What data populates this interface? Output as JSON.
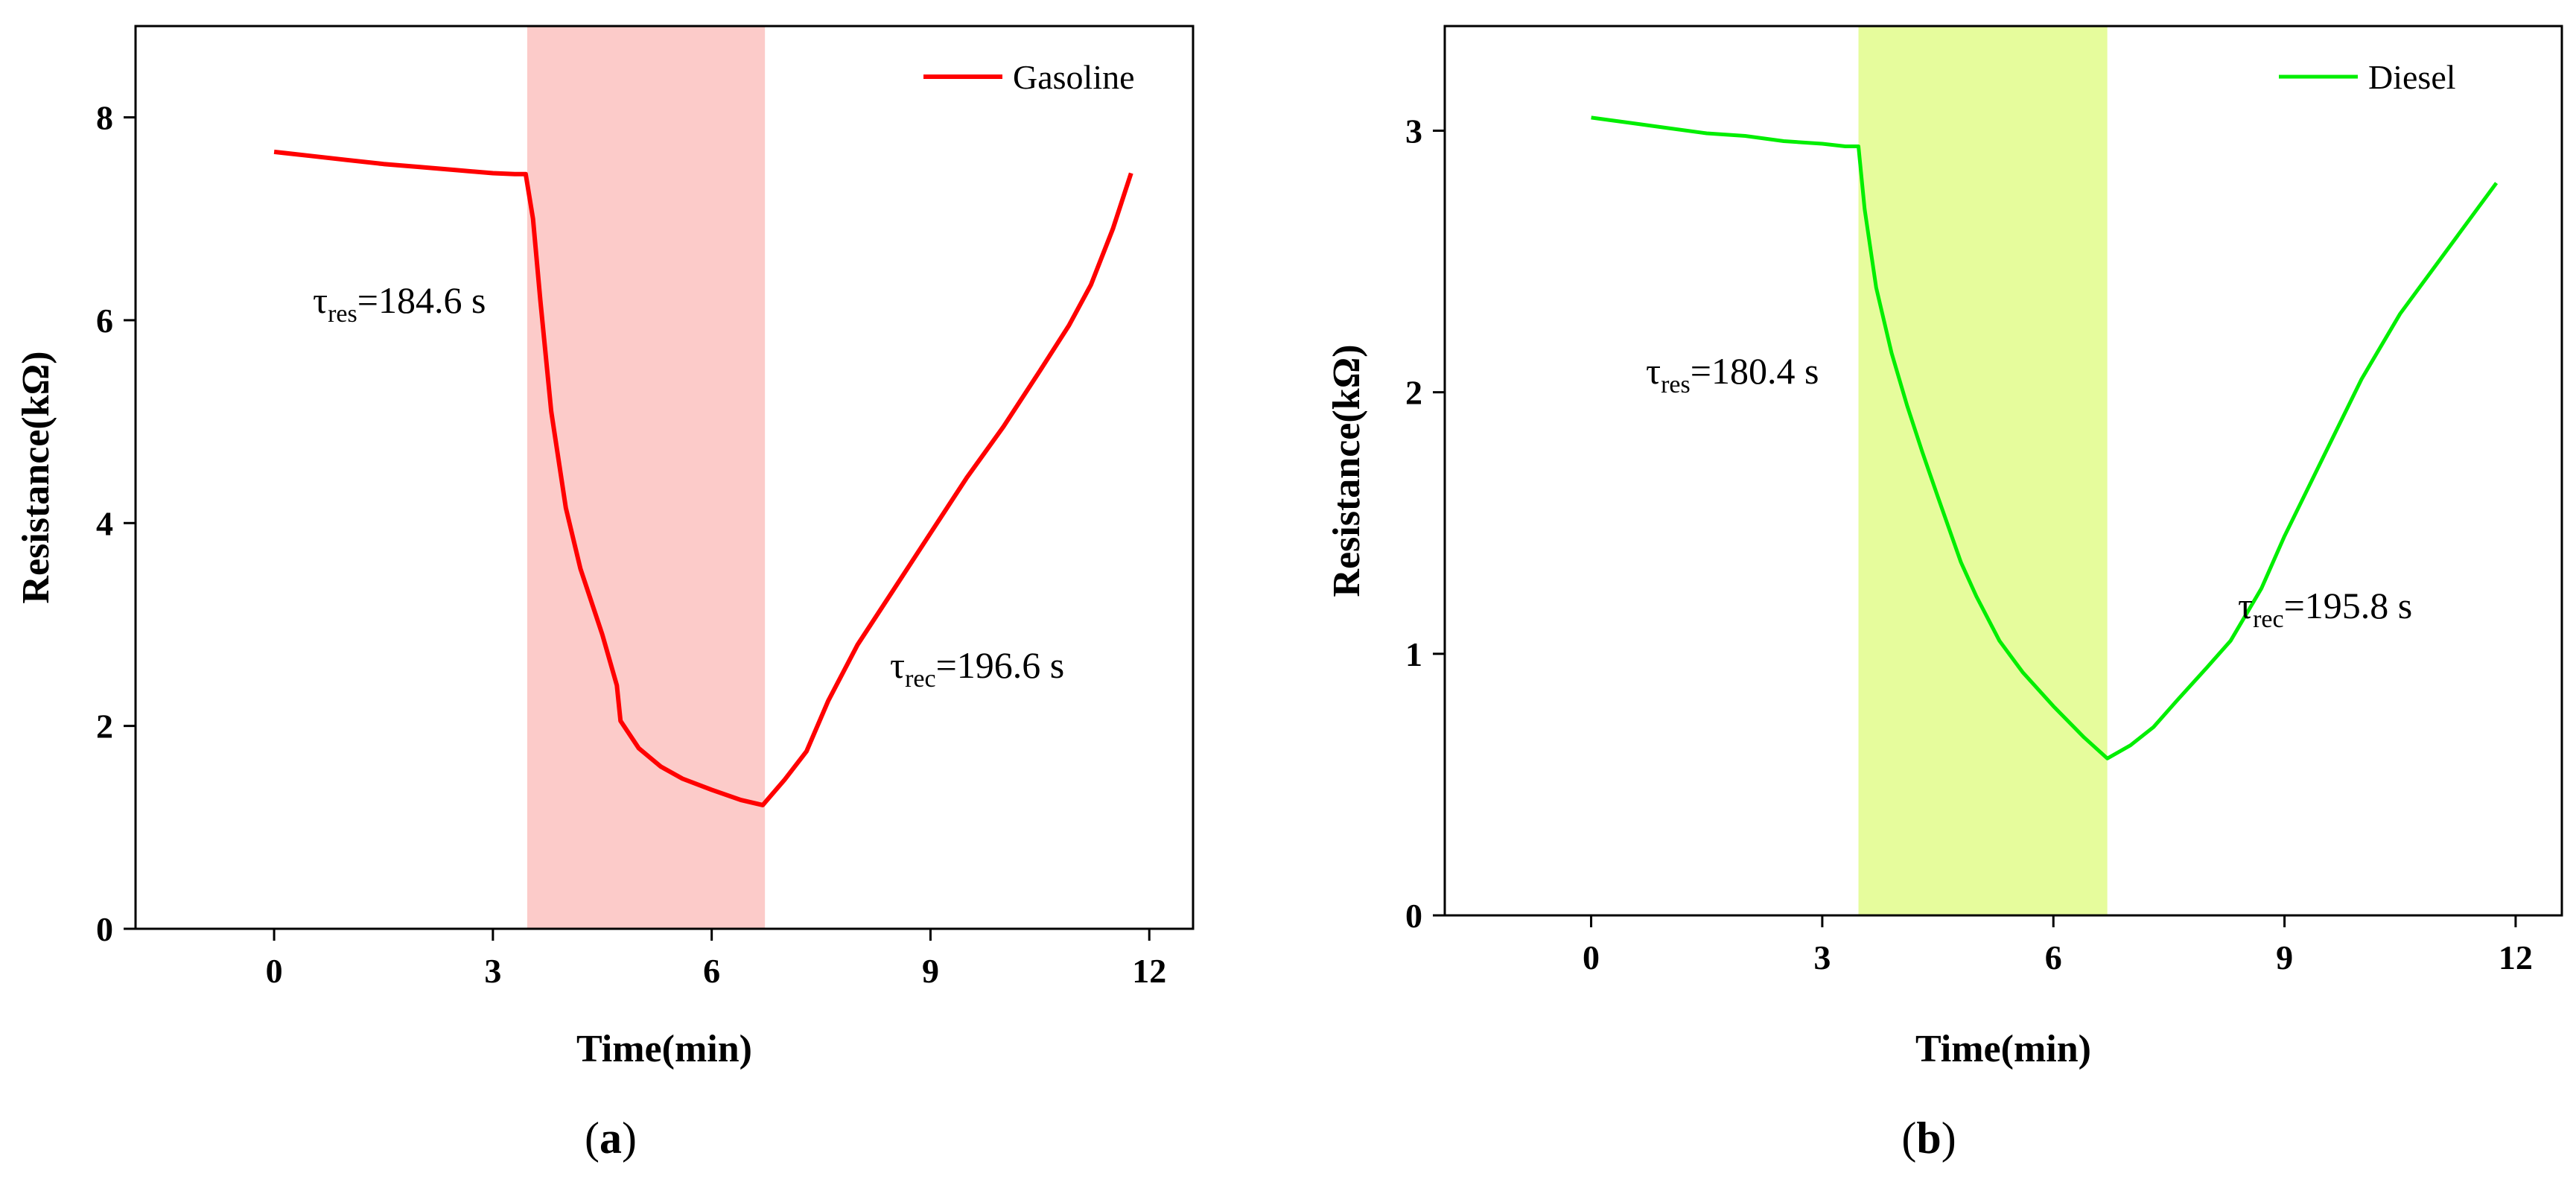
{
  "chart_data": [
    {
      "type": "line",
      "panel_label": "(a)",
      "panel_letter": "a",
      "xlabel": "Time(min)",
      "ylabel": "Resistance(kΩ)",
      "xlim": [
        -1.9,
        12.6
      ],
      "ylim": [
        0,
        8.9
      ],
      "xticks": [
        0,
        3,
        6,
        9,
        12
      ],
      "yticks": [
        0,
        2,
        4,
        6,
        8
      ],
      "xtick_labels": [
        "0",
        "3",
        "6",
        "9",
        "12"
      ],
      "ytick_labels": [
        "0",
        "2",
        "4",
        "6",
        "8"
      ],
      "legend": {
        "position": "top-right",
        "label": "Gasoline"
      },
      "shaded_region": {
        "x_start": 3.47,
        "x_end": 6.73,
        "color": "#fccbc9"
      },
      "series": [
        {
          "name": "Gasoline",
          "color": "#ff0000",
          "x": [
            0,
            0.5,
            1,
            1.5,
            2,
            2.5,
            3,
            3.3,
            3.45,
            3.55,
            3.65,
            3.8,
            4.0,
            4.2,
            4.5,
            4.7,
            4.75,
            5.0,
            5.3,
            5.6,
            6.0,
            6.4,
            6.7,
            7.0,
            7.3,
            7.6,
            8.0,
            8.5,
            9.0,
            9.5,
            10.0,
            10.5,
            10.9,
            11.2,
            11.5,
            11.75
          ],
          "y": [
            7.66,
            7.62,
            7.58,
            7.54,
            7.51,
            7.48,
            7.45,
            7.44,
            7.44,
            7.0,
            6.2,
            5.1,
            4.15,
            3.55,
            2.9,
            2.4,
            2.05,
            1.78,
            1.6,
            1.48,
            1.37,
            1.27,
            1.22,
            1.47,
            1.75,
            2.25,
            2.8,
            3.35,
            3.9,
            4.45,
            4.95,
            5.5,
            5.95,
            6.35,
            6.9,
            7.45
          ]
        }
      ],
      "annotations": [
        {
          "symbol": "τ",
          "sub": "res",
          "text": "=184.6 s"
        },
        {
          "symbol": "τ",
          "sub": "rec",
          "text": "=196.6 s"
        }
      ]
    },
    {
      "type": "line",
      "panel_label": "(b)",
      "panel_letter": "b",
      "xlabel": "Time(min)",
      "ylabel": "Resistance(kΩ)",
      "xlim": [
        -1.9,
        12.6
      ],
      "ylim": [
        0,
        3.4
      ],
      "xticks": [
        0,
        3,
        6,
        9,
        12
      ],
      "yticks": [
        0,
        1,
        2,
        3
      ],
      "xtick_labels": [
        "0",
        "3",
        "6",
        "9",
        "12"
      ],
      "ytick_labels": [
        "0",
        "1",
        "2",
        "3"
      ],
      "legend": {
        "position": "top-right",
        "label": "Diesel"
      },
      "shaded_region": {
        "x_start": 3.47,
        "x_end": 6.7,
        "color": "#e6fc9c"
      },
      "series": [
        {
          "name": "Diesel",
          "color": "#00ee00",
          "x": [
            0,
            0.5,
            1,
            1.5,
            2,
            2.5,
            3,
            3.3,
            3.47,
            3.55,
            3.7,
            3.9,
            4.1,
            4.3,
            4.5,
            4.8,
            5.0,
            5.3,
            5.6,
            6.0,
            6.4,
            6.7,
            7.0,
            7.3,
            7.6,
            8.0,
            8.3,
            8.7,
            9.0,
            9.5,
            10.0,
            10.5,
            11.0,
            11.5,
            11.75
          ],
          "y": [
            3.05,
            3.03,
            3.01,
            2.99,
            2.98,
            2.96,
            2.95,
            2.94,
            2.94,
            2.7,
            2.4,
            2.15,
            1.95,
            1.77,
            1.6,
            1.35,
            1.22,
            1.05,
            0.93,
            0.8,
            0.68,
            0.6,
            0.65,
            0.72,
            0.82,
            0.95,
            1.05,
            1.25,
            1.45,
            1.75,
            2.05,
            2.3,
            2.5,
            2.7,
            2.8
          ]
        }
      ],
      "annotations": [
        {
          "symbol": "τ",
          "sub": "res",
          "text": "=180.4 s"
        },
        {
          "symbol": "τ",
          "sub": "rec",
          "text": "=195.8 s"
        }
      ]
    }
  ]
}
